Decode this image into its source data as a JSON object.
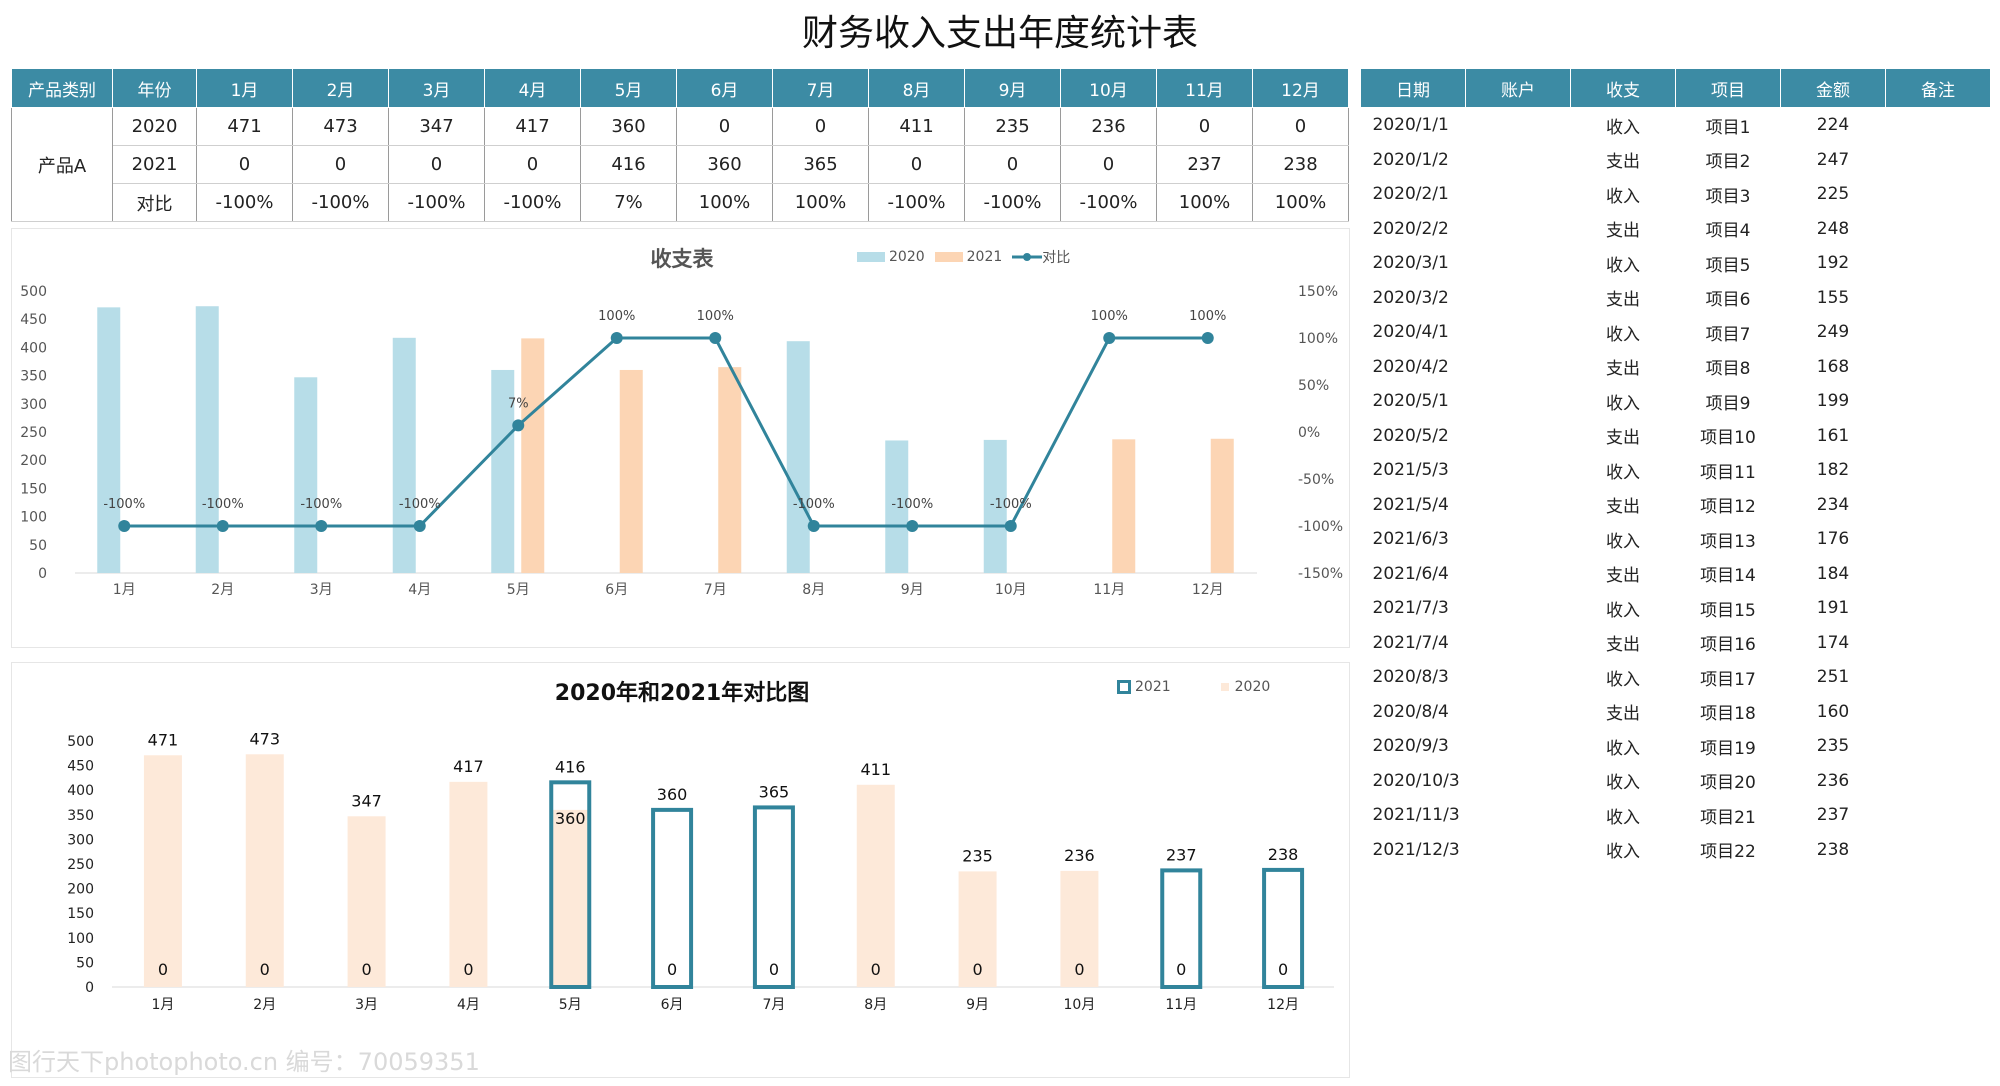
{
  "title": "财务收入支出年度统计表",
  "summary_table": {
    "headers": [
      "产品类别",
      "年份",
      "1月",
      "2月",
      "3月",
      "4月",
      "5月",
      "6月",
      "7月",
      "8月",
      "9月",
      "10月",
      "11月",
      "12月"
    ],
    "category": "产品A",
    "rows": [
      {
        "label": "2020",
        "values": [
          "471",
          "473",
          "347",
          "417",
          "360",
          "0",
          "0",
          "411",
          "235",
          "236",
          "0",
          "0"
        ]
      },
      {
        "label": "2021",
        "values": [
          "0",
          "0",
          "0",
          "0",
          "416",
          "360",
          "365",
          "0",
          "0",
          "0",
          "237",
          "238"
        ]
      },
      {
        "label": "对比",
        "values": [
          "-100%",
          "-100%",
          "-100%",
          "-100%",
          "7%",
          "100%",
          "100%",
          "-100%",
          "-100%",
          "-100%",
          "100%",
          "100%"
        ]
      }
    ]
  },
  "ledger": {
    "headers": [
      "日期",
      "账户",
      "收支",
      "项目",
      "金额",
      "备注"
    ],
    "rows": [
      [
        "2020/1/1",
        "",
        "收入",
        "项目1",
        "224",
        ""
      ],
      [
        "2020/1/2",
        "",
        "支出",
        "项目2",
        "247",
        ""
      ],
      [
        "2020/2/1",
        "",
        "收入",
        "项目3",
        "225",
        ""
      ],
      [
        "2020/2/2",
        "",
        "支出",
        "项目4",
        "248",
        ""
      ],
      [
        "2020/3/1",
        "",
        "收入",
        "项目5",
        "192",
        ""
      ],
      [
        "2020/3/2",
        "",
        "支出",
        "项目6",
        "155",
        ""
      ],
      [
        "2020/4/1",
        "",
        "收入",
        "项目7",
        "249",
        ""
      ],
      [
        "2020/4/2",
        "",
        "支出",
        "项目8",
        "168",
        ""
      ],
      [
        "2020/5/1",
        "",
        "收入",
        "项目9",
        "199",
        ""
      ],
      [
        "2020/5/2",
        "",
        "支出",
        "项目10",
        "161",
        ""
      ],
      [
        "2021/5/3",
        "",
        "收入",
        "项目11",
        "182",
        ""
      ],
      [
        "2021/5/4",
        "",
        "支出",
        "项目12",
        "234",
        ""
      ],
      [
        "2021/6/3",
        "",
        "收入",
        "项目13",
        "176",
        ""
      ],
      [
        "2021/6/4",
        "",
        "支出",
        "项目14",
        "184",
        ""
      ],
      [
        "2021/7/3",
        "",
        "收入",
        "项目15",
        "191",
        ""
      ],
      [
        "2021/7/4",
        "",
        "支出",
        "项目16",
        "174",
        ""
      ],
      [
        "2020/8/3",
        "",
        "收入",
        "项目17",
        "251",
        ""
      ],
      [
        "2020/8/4",
        "",
        "支出",
        "项目18",
        "160",
        ""
      ],
      [
        "2020/9/3",
        "",
        "收入",
        "项目19",
        "235",
        ""
      ],
      [
        "2020/10/3",
        "",
        "收入",
        "项目20",
        "236",
        ""
      ],
      [
        "2021/11/3",
        "",
        "收入",
        "项目21",
        "237",
        ""
      ],
      [
        "2021/12/3",
        "",
        "收入",
        "项目22",
        "238",
        ""
      ]
    ]
  },
  "chart_data": [
    {
      "type": "bar",
      "title": "收支表",
      "categories": [
        "1月",
        "2月",
        "3月",
        "4月",
        "5月",
        "6月",
        "7月",
        "8月",
        "9月",
        "10月",
        "11月",
        "12月"
      ],
      "series": [
        {
          "name": "2020",
          "values": [
            471,
            473,
            347,
            417,
            360,
            0,
            0,
            411,
            235,
            236,
            0,
            0
          ],
          "color": "#b7dde8"
        },
        {
          "name": "2021",
          "values": [
            0,
            0,
            0,
            0,
            416,
            360,
            365,
            0,
            0,
            0,
            237,
            238
          ],
          "color": "#fcd5b4"
        },
        {
          "name": "对比",
          "type": "line",
          "axis": "right",
          "values": [
            -100,
            -100,
            -100,
            -100,
            7,
            100,
            100,
            -100,
            -100,
            -100,
            100,
            100
          ],
          "point_labels": [
            "-100%",
            "-100%",
            "-100%",
            "-100%",
            "7%",
            "100%",
            "100%",
            "-100%",
            "-100%",
            "-100%",
            "100%",
            "100%"
          ],
          "color": "#31849b"
        }
      ],
      "ylim": [
        0,
        500
      ],
      "yticks": [
        "0",
        "50",
        "100",
        "150",
        "200",
        "250",
        "300",
        "350",
        "400",
        "450",
        "500"
      ],
      "y2lim": [
        -150,
        150
      ],
      "y2ticks": [
        "-150%",
        "-100%",
        "-50%",
        "0%",
        "50%",
        "100%",
        "150%"
      ],
      "legend": "top-right"
    },
    {
      "type": "bar",
      "title": "2020年和2021年对比图",
      "categories": [
        "1月",
        "2月",
        "3月",
        "4月",
        "5月",
        "6月",
        "7月",
        "8月",
        "9月",
        "10月",
        "11月",
        "12月"
      ],
      "series": [
        {
          "name": "2020",
          "values": [
            471,
            473,
            347,
            417,
            360,
            0,
            0,
            411,
            235,
            236,
            0,
            0
          ],
          "color": "#fde9d9"
        },
        {
          "name": "2021",
          "values": [
            0,
            0,
            0,
            0,
            416,
            360,
            365,
            0,
            0,
            0,
            237,
            238
          ],
          "color": "#31849b",
          "style": "outline"
        }
      ],
      "ylim": [
        0,
        500
      ],
      "yticks": [
        "0",
        "50",
        "100",
        "150",
        "200",
        "250",
        "300",
        "350",
        "400",
        "450",
        "500"
      ],
      "legend": "top-right"
    }
  ],
  "watermark": "图行天下photophoto.cn 编号：70059351"
}
